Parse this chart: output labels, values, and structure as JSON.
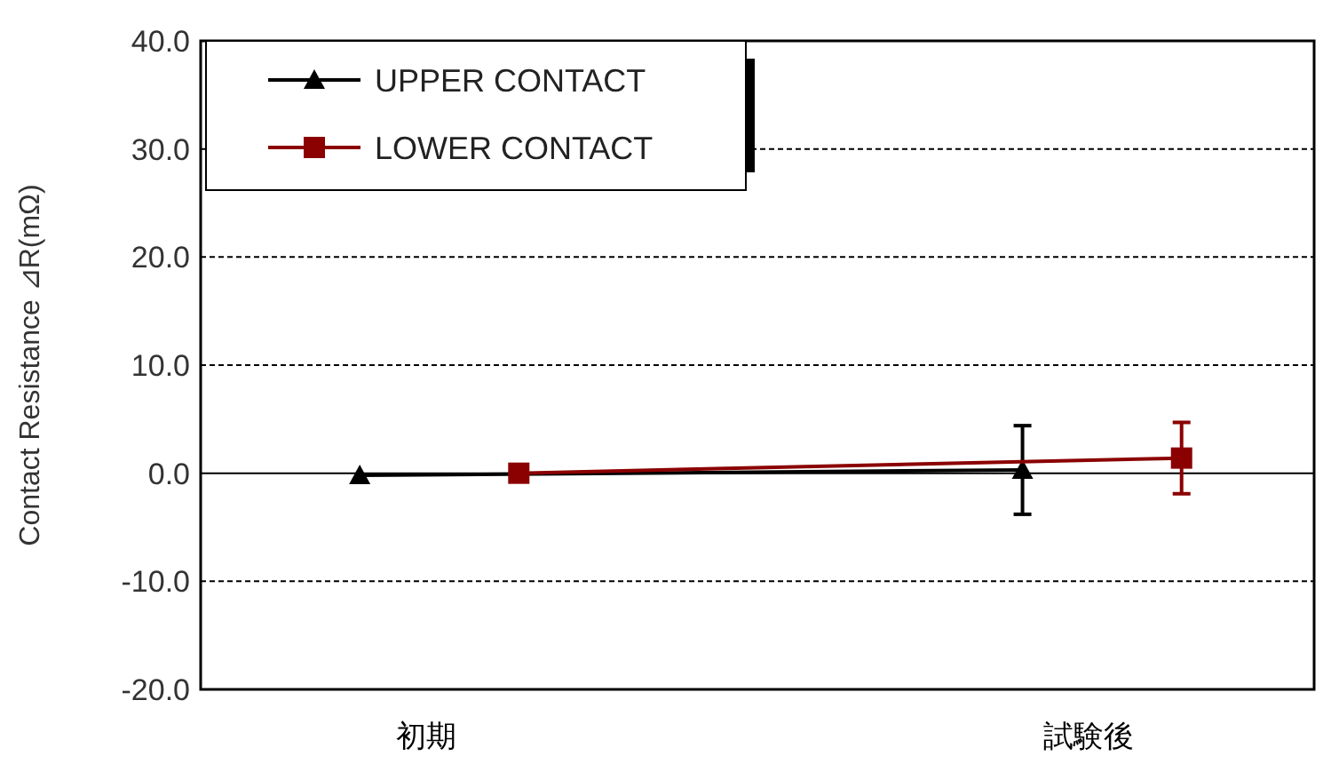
{
  "chart_data": {
    "type": "line",
    "ylabel": "Contact Resistance ⊿R(mΩ)",
    "categories": [
      "初期",
      "試験後"
    ],
    "series": [
      {
        "name": "UPPER CONTACT",
        "color": "#000000",
        "marker": "triangle",
        "values": [
          -0.2,
          0.3
        ],
        "errors": [
          null,
          4.1
        ]
      },
      {
        "name": "LOWER CONTACT",
        "color": "#8b0000",
        "marker": "square",
        "values": [
          0.0,
          1.4
        ],
        "errors": [
          null,
          3.3
        ]
      }
    ],
    "ylim": [
      -20,
      40
    ],
    "yticks": [
      {
        "value": -20,
        "label": "-20.0"
      },
      {
        "value": -10,
        "label": "-10.0"
      },
      {
        "value": 0,
        "label": "0.0"
      },
      {
        "value": 10,
        "label": "10.0"
      },
      {
        "value": 20,
        "label": "20.0"
      },
      {
        "value": 30,
        "label": "30.0"
      },
      {
        "value": 40,
        "label": "40.0"
      }
    ],
    "grid": "y",
    "legend": "top left",
    "line_style": "solid"
  }
}
